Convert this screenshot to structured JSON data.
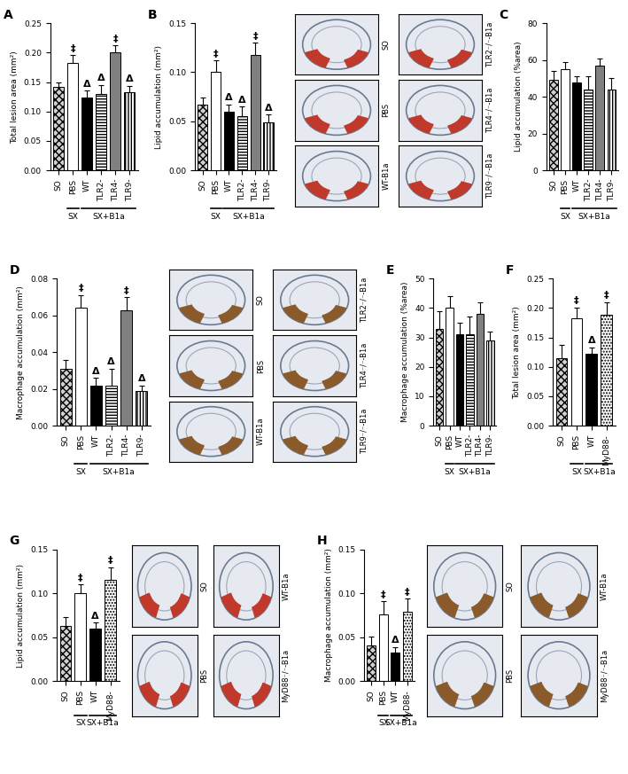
{
  "chart_data": [
    {
      "panel": "A",
      "type": "bar",
      "ylabel": "Total lesion area (mm²)",
      "categories": [
        "SO",
        "PBS",
        "WT",
        "TLR2-",
        "TLR4-",
        "TLR9-"
      ],
      "values": [
        0.142,
        0.183,
        0.123,
        0.13,
        0.2,
        0.132
      ],
      "errors": [
        0.008,
        0.013,
        0.012,
        0.015,
        0.012,
        0.012
      ],
      "colors": [
        "#d0d0d0",
        "#ffffff",
        "#000000",
        "#ffffff",
        "#808080",
        "#ffffff"
      ],
      "annotations": [
        null,
        "‡",
        "Δ",
        "Δ",
        "‡",
        "Δ"
      ],
      "groups": [
        {
          "label": "SX",
          "from": "PBS",
          "to": "PBS"
        },
        {
          "label": "SX+B1a",
          "from": "WT",
          "to": "TLR9-"
        }
      ],
      "ylim": [
        0,
        0.25
      ],
      "yticks": [
        {
          "value": 0,
          "label": "0.00"
        },
        {
          "value": 0.05,
          "label": "0.05"
        },
        {
          "value": 0.1,
          "label": "0.10"
        },
        {
          "value": 0.15,
          "label": "0.15"
        },
        {
          "value": 0.2,
          "label": "0.20"
        },
        {
          "value": 0.25,
          "label": "0.25"
        }
      ]
    },
    {
      "panel": "B",
      "type": "bar",
      "ylabel": "Lipid accumulation (mm²)",
      "categories": [
        "SO",
        "PBS",
        "WT",
        "TLR2-",
        "TLR4-",
        "TLR9-"
      ],
      "values": [
        0.067,
        0.1,
        0.06,
        0.055,
        0.118,
        0.049
      ],
      "errors": [
        0.007,
        0.012,
        0.007,
        0.01,
        0.012,
        0.008
      ],
      "colors": [
        "#d0d0d0",
        "#ffffff",
        "#000000",
        "#ffffff",
        "#808080",
        "#ffffff"
      ],
      "annotations": [
        null,
        "‡",
        "Δ",
        "Δ",
        "‡",
        "Δ"
      ],
      "groups": [
        {
          "label": "SX",
          "from": "PBS",
          "to": "PBS"
        },
        {
          "label": "SX+B1a",
          "from": "WT",
          "to": "TLR9-"
        }
      ],
      "ylim": [
        0,
        0.15
      ],
      "yticks": [
        {
          "value": 0,
          "label": "0.00"
        },
        {
          "value": 0.05,
          "label": "0.05"
        },
        {
          "value": 0.1,
          "label": "0.10"
        },
        {
          "value": 0.15,
          "label": "0.15"
        }
      ],
      "images": {
        "labels": [
          "SO",
          "PBS",
          "WT-B1a",
          "TLR2⁻/⁻-B1a",
          "TLR4⁻/⁻-B1a",
          "TLR9⁻/⁻-B1a"
        ],
        "color": "#c0392b"
      }
    },
    {
      "panel": "C",
      "type": "bar",
      "ylabel": "Lipid accumulation (%area)",
      "categories": [
        "SO",
        "PBS",
        "WT",
        "TLR2-",
        "TLR4-",
        "TLR9-"
      ],
      "values": [
        49,
        55,
        48,
        44,
        57,
        44
      ],
      "errors": [
        5,
        4,
        3,
        7,
        4,
        6
      ],
      "colors": [
        "#d0d0d0",
        "#ffffff",
        "#000000",
        "#ffffff",
        "#808080",
        "#ffffff"
      ],
      "annotations": [
        null,
        null,
        null,
        null,
        null,
        null
      ],
      "groups": [
        {
          "label": "SX",
          "from": "PBS",
          "to": "PBS"
        },
        {
          "label": "SX+B1a",
          "from": "WT",
          "to": "TLR9-"
        }
      ],
      "ylim": [
        0,
        80
      ],
      "yticks": [
        0,
        20,
        40,
        60,
        80
      ]
    },
    {
      "panel": "D",
      "type": "bar",
      "ylabel": "Macrophage accumulation (mm²)",
      "categories": [
        "SO",
        "PBS",
        "WT",
        "TLR2-",
        "TLR4-",
        "TLR9-"
      ],
      "values": [
        0.031,
        0.064,
        0.022,
        0.022,
        0.063,
        0.019
      ],
      "errors": [
        0.005,
        0.007,
        0.004,
        0.009,
        0.007,
        0.003
      ],
      "colors": [
        "#d0d0d0",
        "#ffffff",
        "#000000",
        "#ffffff",
        "#808080",
        "#ffffff"
      ],
      "annotations": [
        null,
        "‡",
        "Δ",
        "Δ",
        "‡",
        "Δ"
      ],
      "groups": [
        {
          "label": "SX",
          "from": "PBS",
          "to": "PBS"
        },
        {
          "label": "SX+B1a",
          "from": "WT",
          "to": "TLR9-"
        }
      ],
      "ylim": [
        0,
        0.08
      ],
      "yticks": [
        {
          "value": 0,
          "label": "0.00"
        },
        {
          "value": 0.02,
          "label": "0.02"
        },
        {
          "value": 0.04,
          "label": "0.04"
        },
        {
          "value": 0.06,
          "label": "0.06"
        },
        {
          "value": 0.08,
          "label": "0.08"
        }
      ],
      "images": {
        "labels": [
          "SO",
          "PBS",
          "WT-B1a",
          "TLR2⁻/⁻-B1a",
          "TLR4⁻/⁻-B1a",
          "TLR9⁻/⁻-B1a"
        ],
        "color": "#8b5a2b"
      }
    },
    {
      "panel": "E",
      "type": "bar",
      "ylabel": "Macrophage accumulation (%area)",
      "categories": [
        "SO",
        "PBS",
        "WT",
        "TLR2-",
        "TLR4-",
        "TLR9-"
      ],
      "values": [
        33,
        40,
        31,
        31,
        38,
        29
      ],
      "errors": [
        6,
        4,
        4,
        6,
        4,
        3
      ],
      "colors": [
        "#d0d0d0",
        "#ffffff",
        "#000000",
        "#ffffff",
        "#808080",
        "#ffffff"
      ],
      "annotations": [
        null,
        null,
        null,
        null,
        null,
        null
      ],
      "groups": [
        {
          "label": "SX",
          "from": "PBS",
          "to": "PBS"
        },
        {
          "label": "SX+B1a",
          "from": "WT",
          "to": "TLR9-"
        }
      ],
      "ylim": [
        0,
        50
      ],
      "yticks": [
        0,
        10,
        20,
        30,
        40,
        50
      ]
    },
    {
      "panel": "F",
      "type": "bar",
      "ylabel": "Total lesion area (mm²)",
      "categories": [
        "SO",
        "PBS",
        "WT",
        "MyD88-"
      ],
      "values": [
        0.115,
        0.183,
        0.123,
        0.188
      ],
      "errors": [
        0.022,
        0.018,
        0.01,
        0.022
      ],
      "colors": [
        "#d0d0d0",
        "#ffffff",
        "#000000",
        "#ffffff"
      ],
      "annotations": [
        null,
        "‡",
        "Δ",
        "‡"
      ],
      "groups": [
        {
          "label": "SX",
          "from": "PBS",
          "to": "PBS"
        },
        {
          "label": "SX+B1a",
          "from": "WT",
          "to": "MyD88-"
        }
      ],
      "ylim": [
        0,
        0.25
      ],
      "yticks": [
        {
          "value": 0,
          "label": "0.00"
        },
        {
          "value": 0.05,
          "label": "0.05"
        },
        {
          "value": 0.1,
          "label": "0.10"
        },
        {
          "value": 0.15,
          "label": "0.15"
        },
        {
          "value": 0.2,
          "label": "0.20"
        },
        {
          "value": 0.25,
          "label": "0.25"
        }
      ]
    },
    {
      "panel": "G",
      "type": "bar",
      "ylabel": "Lipid accumulation (mm²)",
      "categories": [
        "SO",
        "PBS",
        "WT",
        "MyD88-"
      ],
      "values": [
        0.063,
        0.1,
        0.06,
        0.115
      ],
      "errors": [
        0.01,
        0.01,
        0.007,
        0.015
      ],
      "colors": [
        "#d0d0d0",
        "#ffffff",
        "#000000",
        "#ffffff"
      ],
      "annotations": [
        null,
        "‡",
        "Δ",
        "‡"
      ],
      "groups": [
        {
          "label": "SX",
          "from": "PBS",
          "to": "PBS"
        },
        {
          "label": "SX+B1a",
          "from": "WT",
          "to": "MyD88-"
        }
      ],
      "ylim": [
        0,
        0.15
      ],
      "yticks": [
        {
          "value": 0,
          "label": "0.00"
        },
        {
          "value": 0.05,
          "label": "0.05"
        },
        {
          "value": 0.1,
          "label": "0.10"
        },
        {
          "value": 0.15,
          "label": "0.15"
        }
      ],
      "images": {
        "labels": [
          "SO",
          "PBS",
          "WT-B1a",
          "MyD88⁻/⁻-B1a"
        ],
        "color": "#c0392b"
      }
    },
    {
      "panel": "H",
      "type": "bar",
      "ylabel": "Macrophage accumulation (mm²)",
      "categories": [
        "SO",
        "PBS",
        "WT",
        "MyD88-"
      ],
      "values": [
        0.041,
        0.076,
        0.033,
        0.079
      ],
      "errors": [
        0.01,
        0.015,
        0.006,
        0.015
      ],
      "colors": [
        "#d0d0d0",
        "#ffffff",
        "#000000",
        "#ffffff"
      ],
      "annotations": [
        null,
        "‡",
        "Δ",
        "‡"
      ],
      "groups": [
        {
          "label": "SX",
          "from": "PBS",
          "to": "PBS"
        },
        {
          "label": "SX+B1a",
          "from": "WT",
          "to": "MyD88-"
        }
      ],
      "ylim": [
        0,
        0.15
      ],
      "yticks": [
        {
          "value": 0,
          "label": "0.00"
        },
        {
          "value": 0.05,
          "label": "0.05"
        },
        {
          "value": 0.1,
          "label": "0.10"
        },
        {
          "value": 0.15,
          "label": "0.15"
        }
      ],
      "images": {
        "labels": [
          "SO",
          "PBS",
          "WT-B1a",
          "MyD88⁻/⁻-B1a"
        ],
        "color": "#8b5a2b"
      }
    }
  ]
}
